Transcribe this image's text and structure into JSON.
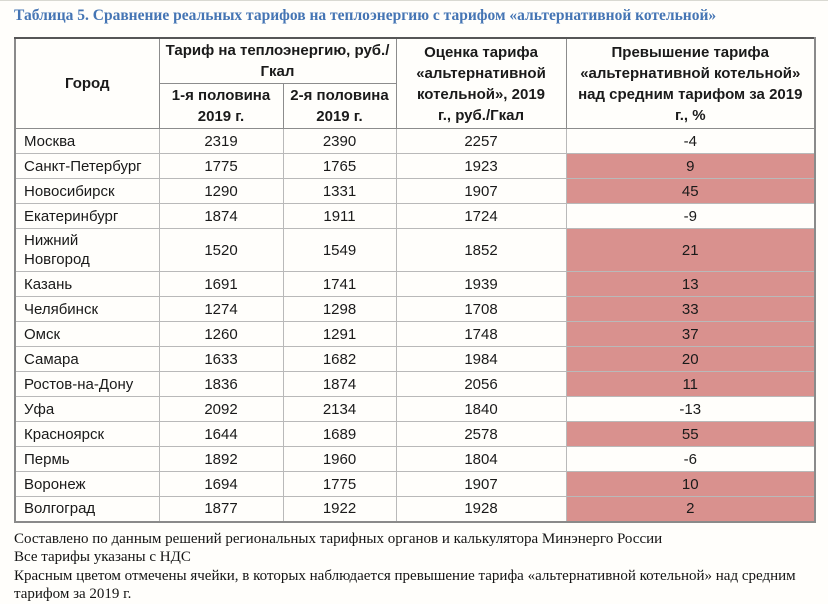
{
  "title": "Таблица 5. Сравнение реальных тарифов на теплоэнергию с тарифом «альтернативной котельной»",
  "colors": {
    "highlight": "#d9918e",
    "title": "#4575b4"
  },
  "table": {
    "headers": {
      "city": "Город",
      "tariff_group": "Тариф на теплоэнергию, руб./Гкал",
      "half1": "1-я половина 2019 г.",
      "half2": "2-я половина 2019 г.",
      "alt_estimate": "Оценка тарифа «альтернативной котельной», 2019 г., руб./Гкал",
      "excess_pct": "Превышение тарифа «альтернативной котельной» над средним тарифом за 2019 г., %"
    },
    "rows": [
      {
        "city": "Москва",
        "half1": "2319",
        "half2": "2390",
        "alt_estimate": "2257",
        "excess_pct": "-4",
        "highlight": false
      },
      {
        "city": "Санкт-Петербург",
        "half1": "1775",
        "half2": "1765",
        "alt_estimate": "1923",
        "excess_pct": "9",
        "highlight": true
      },
      {
        "city": "Новосибирск",
        "half1": "1290",
        "half2": "1331",
        "alt_estimate": "1907",
        "excess_pct": "45",
        "highlight": true
      },
      {
        "city": "Екатеринбург",
        "half1": "1874",
        "half2": "1911",
        "alt_estimate": "1724",
        "excess_pct": "-9",
        "highlight": false
      },
      {
        "city": "Нижний\nНовгород",
        "half1": "1520",
        "half2": "1549",
        "alt_estimate": "1852",
        "excess_pct": "21",
        "highlight": true
      },
      {
        "city": "Казань",
        "half1": "1691",
        "half2": "1741",
        "alt_estimate": "1939",
        "excess_pct": "13",
        "highlight": true
      },
      {
        "city": "Челябинск",
        "half1": "1274",
        "half2": "1298",
        "alt_estimate": "1708",
        "excess_pct": "33",
        "highlight": true
      },
      {
        "city": "Омск",
        "half1": "1260",
        "half2": "1291",
        "alt_estimate": "1748",
        "excess_pct": "37",
        "highlight": true
      },
      {
        "city": "Самара",
        "half1": "1633",
        "half2": "1682",
        "alt_estimate": "1984",
        "excess_pct": "20",
        "highlight": true
      },
      {
        "city": "Ростов-на-Дону",
        "half1": "1836",
        "half2": "1874",
        "alt_estimate": "2056",
        "excess_pct": "11",
        "highlight": true
      },
      {
        "city": "Уфа",
        "half1": "2092",
        "half2": "2134",
        "alt_estimate": "1840",
        "excess_pct": "-13",
        "highlight": false
      },
      {
        "city": "Красноярск",
        "half1": "1644",
        "half2": "1689",
        "alt_estimate": "2578",
        "excess_pct": "55",
        "highlight": true
      },
      {
        "city": "Пермь",
        "half1": "1892",
        "half2": "1960",
        "alt_estimate": "1804",
        "excess_pct": "-6",
        "highlight": false
      },
      {
        "city": "Воронеж",
        "half1": "1694",
        "half2": "1775",
        "alt_estimate": "1907",
        "excess_pct": "10",
        "highlight": true
      },
      {
        "city": "Волгоград",
        "half1": "1877",
        "half2": "1922",
        "alt_estimate": "1928",
        "excess_pct": "2",
        "highlight": true
      }
    ]
  },
  "footnotes": [
    "Составлено по данным решений региональных тарифных органов и калькулятора Минэнерго России",
    "Все тарифы указаны с НДС",
    "Красным цветом отмечены ячейки, в которых наблюдается превышение тарифа «альтернативной котельной» над средним тарифом за 2019 г."
  ]
}
